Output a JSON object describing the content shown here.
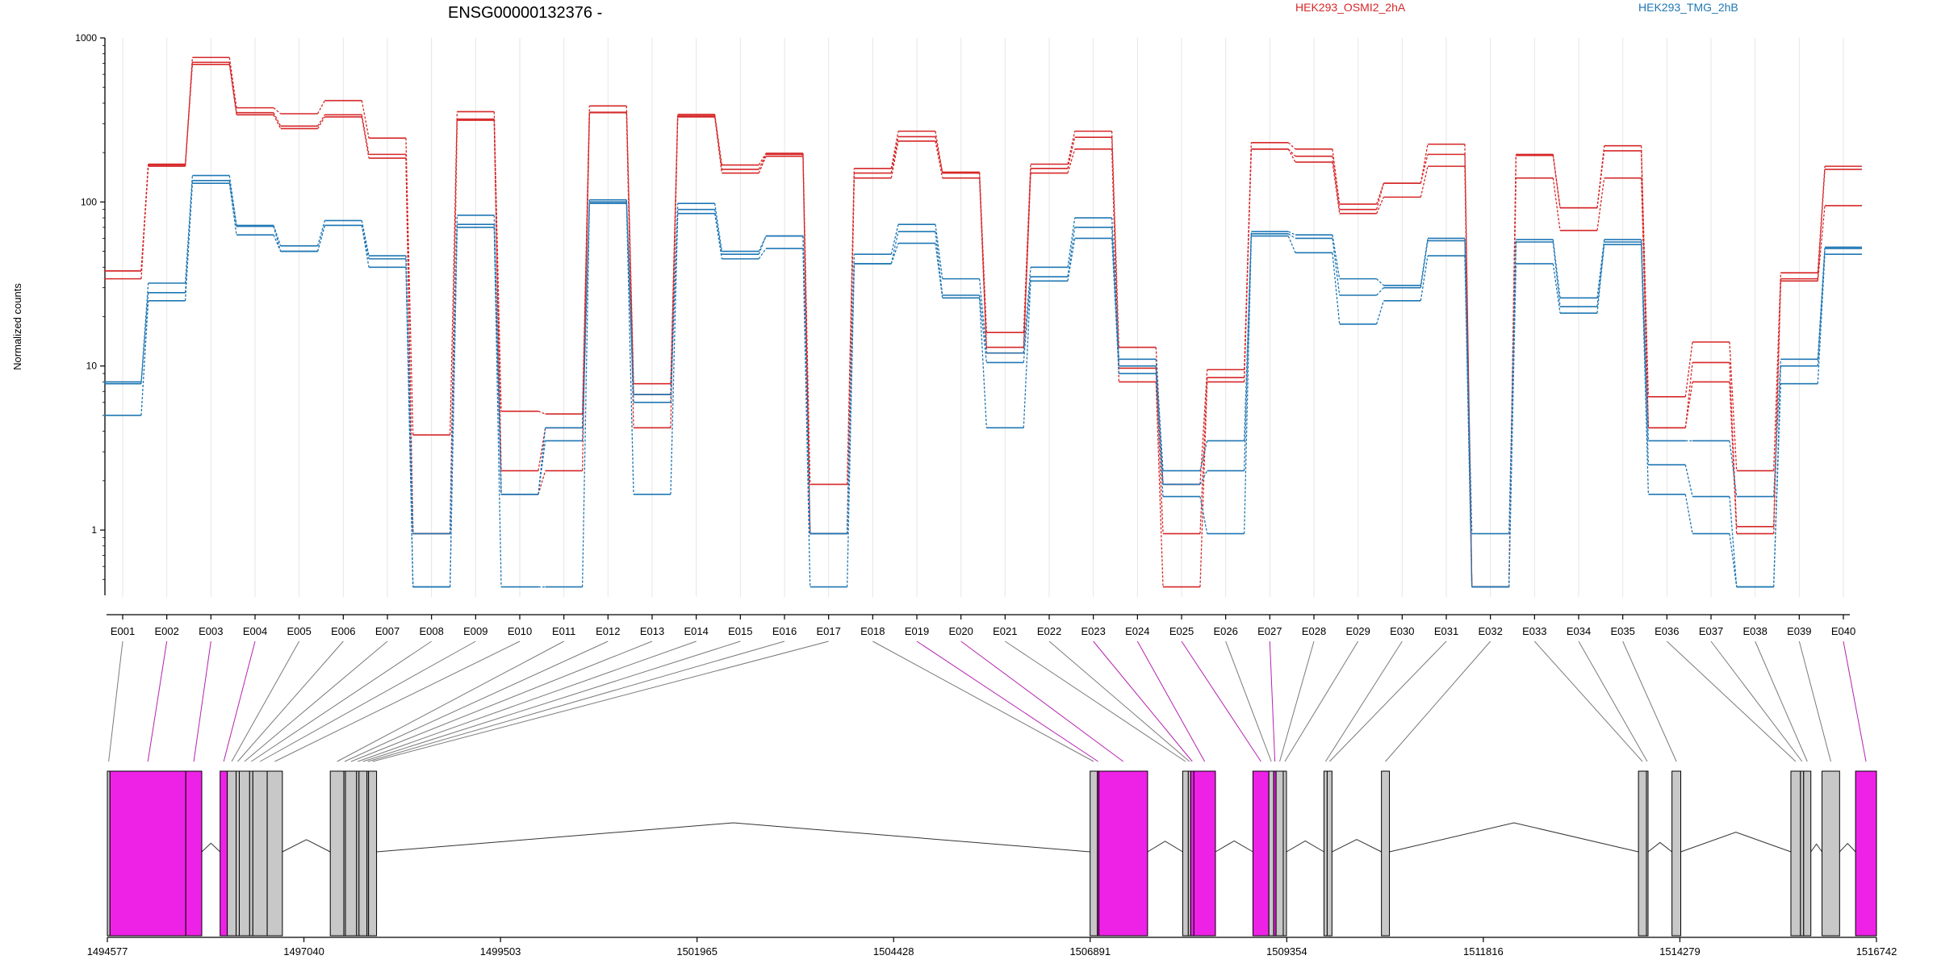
{
  "chart_data": {
    "type": "line",
    "title": "ENSG00000132376 -",
    "ylabel": "Normalized counts",
    "yscale": "log",
    "ylim": [
      0.4,
      1000
    ],
    "yticks": [
      "1000",
      "100",
      "10",
      "1"
    ],
    "legend": [
      "HEK293_OSMI2_2hA",
      "HEK293_TMG_2hB"
    ],
    "legend_position": "top-right",
    "colors": {
      "HEK293_OSMI2_2hA": "#d62728",
      "HEK293_TMG_2hB": "#1f77b4",
      "exon_highlight": "#ee22e6",
      "exon_plain": "#c8c8c8"
    },
    "categories": [
      "E001",
      "E002",
      "E003",
      "E004",
      "E005",
      "E006",
      "E007",
      "E008",
      "E009",
      "E010",
      "E011",
      "E012",
      "E013",
      "E014",
      "E015",
      "E016",
      "E017",
      "E018",
      "E019",
      "E020",
      "E021",
      "E022",
      "E023",
      "E024",
      "E025",
      "E026",
      "E027",
      "E028",
      "E029",
      "E030",
      "E031",
      "E032",
      "E033",
      "E034",
      "E035",
      "E036",
      "E037",
      "E038",
      "E039",
      "E040"
    ],
    "series": [
      {
        "name": "HEK293_OSMI2_2hA",
        "group": "a",
        "values": [
          38,
          165,
          760,
          375,
          345,
          415,
          245,
          3.8,
          355,
          5.3,
          5.1,
          385,
          7.8,
          342,
          168,
          198,
          1.9,
          160,
          270,
          150,
          16,
          170,
          270,
          13,
          1.9,
          9.5,
          230,
          210,
          97,
          130,
          225,
          0.45,
          195,
          92,
          220,
          6.5,
          14,
          2.3,
          37,
          165
        ]
      },
      {
        "name": "HEK293_OSMI2_2hA",
        "group": "a",
        "values": [
          34,
          168,
          710,
          350,
          290,
          340,
          195,
          0.95,
          315,
          2.3,
          4.2,
          352,
          6.7,
          335,
          158,
          195,
          0.95,
          150,
          250,
          152,
          13,
          160,
          248,
          9.7,
          0.95,
          8.5,
          210,
          190,
          90,
          130,
          195,
          0.45,
          192,
          92,
          205,
          4.2,
          10.5,
          1.05,
          34,
          158
        ]
      },
      {
        "name": "HEK293_OSMI2_2hA",
        "group": "a",
        "values": [
          38,
          170,
          690,
          340,
          280,
          330,
          185,
          0.95,
          320,
          1.65,
          2.3,
          350,
          4.2,
          330,
          150,
          190,
          0.95,
          140,
          235,
          140,
          12,
          150,
          210,
          8,
          0.45,
          8,
          210,
          175,
          85,
          107,
          165,
          0.45,
          140,
          67,
          140,
          4.2,
          8,
          0.95,
          33,
          95
        ]
      },
      {
        "name": "HEK293_TMG_2hB",
        "group": "b",
        "values": [
          8,
          32,
          145,
          72,
          54,
          77,
          47,
          0.95,
          83,
          1.65,
          4.2,
          103,
          6.7,
          98,
          50,
          62,
          0.95,
          48,
          73,
          34,
          12,
          40,
          80,
          11,
          2.3,
          3.5,
          66,
          63,
          34,
          31,
          60,
          0.95,
          59,
          26,
          59,
          3.5,
          3.5,
          1.6,
          11,
          53
        ]
      },
      {
        "name": "HEK293_TMG_2hB",
        "group": "b",
        "values": [
          7.8,
          28,
          135,
          71,
          50,
          72,
          45,
          0.45,
          73,
          1.65,
          3.5,
          100,
          6,
          90,
          48,
          62,
          0.95,
          42,
          66,
          27,
          10.5,
          35,
          70,
          10,
          1.9,
          2.3,
          64,
          60,
          27,
          30,
          58,
          0.45,
          57,
          23,
          57,
          2.5,
          1.6,
          0.45,
          10,
          52
        ]
      },
      {
        "name": "HEK293_TMG_2hB",
        "group": "b",
        "values": [
          5,
          25,
          130,
          63,
          50,
          72,
          40,
          0.45,
          70,
          0.45,
          0.45,
          98,
          1.65,
          85,
          45,
          52,
          0.45,
          42,
          56,
          26,
          4.2,
          33,
          60,
          9,
          1.6,
          0.95,
          62,
          49,
          18,
          25,
          47,
          0.45,
          42,
          21,
          55,
          1.65,
          0.95,
          0.45,
          7.8,
          48
        ]
      }
    ],
    "genomic_coordinates": [
      "1494577",
      "1497040",
      "1499503",
      "1501965",
      "1504428",
      "1506891",
      "1509354",
      "1511816",
      "1514279",
      "1516742"
    ],
    "genomic_range": [
      1494577,
      1516742
    ],
    "exon_model": [
      {
        "id": "E001",
        "start": 1494577,
        "end": 1494610,
        "highlight": false
      },
      {
        "id": "E002",
        "start": 1494610,
        "end": 1495560,
        "highlight": true
      },
      {
        "id": "E003",
        "start": 1495560,
        "end": 1495760,
        "highlight": true
      },
      {
        "id": "E004",
        "start": 1495990,
        "end": 1496080,
        "highlight": true
      },
      {
        "id": "E005",
        "start": 1496080,
        "end": 1496190,
        "highlight": false
      },
      {
        "id": "E006",
        "start": 1496190,
        "end": 1496230,
        "highlight": false
      },
      {
        "id": "E007",
        "start": 1496230,
        "end": 1496360,
        "highlight": false
      },
      {
        "id": "E008",
        "start": 1496360,
        "end": 1496400,
        "highlight": false
      },
      {
        "id": "E009",
        "start": 1496400,
        "end": 1496580,
        "highlight": false
      },
      {
        "id": "E010",
        "start": 1496580,
        "end": 1496770,
        "highlight": false
      },
      {
        "id": "E011",
        "start": 1497370,
        "end": 1497540,
        "highlight": false
      },
      {
        "id": "E012",
        "start": 1497540,
        "end": 1497560,
        "highlight": false
      },
      {
        "id": "E013",
        "start": 1497560,
        "end": 1497700,
        "highlight": false
      },
      {
        "id": "E014",
        "start": 1497700,
        "end": 1497730,
        "highlight": false
      },
      {
        "id": "E015",
        "start": 1497730,
        "end": 1497830,
        "highlight": false
      },
      {
        "id": "E016",
        "start": 1497830,
        "end": 1497850,
        "highlight": false
      },
      {
        "id": "E017",
        "start": 1497850,
        "end": 1497950,
        "highlight": false
      },
      {
        "id": "E018",
        "start": 1506890,
        "end": 1506980,
        "highlight": false
      },
      {
        "id": "E019",
        "start": 1506980,
        "end": 1507000,
        "highlight": true
      },
      {
        "id": "E020",
        "start": 1507000,
        "end": 1507610,
        "highlight": true
      },
      {
        "id": "E021",
        "start": 1508050,
        "end": 1508120,
        "highlight": false
      },
      {
        "id": "E022",
        "start": 1508120,
        "end": 1508150,
        "highlight": false
      },
      {
        "id": "E023",
        "start": 1508150,
        "end": 1508190,
        "highlight": true
      },
      {
        "id": "E024",
        "start": 1508190,
        "end": 1508460,
        "highlight": true
      },
      {
        "id": "E025",
        "start": 1508930,
        "end": 1509130,
        "highlight": true
      },
      {
        "id": "E026",
        "start": 1509130,
        "end": 1509190,
        "highlight": false
      },
      {
        "id": "E027",
        "start": 1509190,
        "end": 1509220,
        "highlight": true
      },
      {
        "id": "E028",
        "start": 1509220,
        "end": 1509310,
        "highlight": false
      },
      {
        "id": "E029",
        "start": 1509310,
        "end": 1509350,
        "highlight": false
      },
      {
        "id": "E030",
        "start": 1509820,
        "end": 1509860,
        "highlight": false
      },
      {
        "id": "E031",
        "start": 1509860,
        "end": 1509920,
        "highlight": false
      },
      {
        "id": "E032",
        "start": 1510540,
        "end": 1510640,
        "highlight": false
      },
      {
        "id": "E033",
        "start": 1513760,
        "end": 1513860,
        "highlight": false
      },
      {
        "id": "E034",
        "start": 1513860,
        "end": 1513880,
        "highlight": false
      },
      {
        "id": "E035",
        "start": 1514180,
        "end": 1514290,
        "highlight": false
      },
      {
        "id": "E036",
        "start": 1515670,
        "end": 1515790,
        "highlight": false
      },
      {
        "id": "E037",
        "start": 1515790,
        "end": 1515830,
        "highlight": false
      },
      {
        "id": "E038",
        "start": 1515830,
        "end": 1515920,
        "highlight": false
      },
      {
        "id": "E039",
        "start": 1516060,
        "end": 1516280,
        "highlight": false
      },
      {
        "id": "E040",
        "start": 1516480,
        "end": 1516742,
        "highlight": true
      }
    ]
  }
}
